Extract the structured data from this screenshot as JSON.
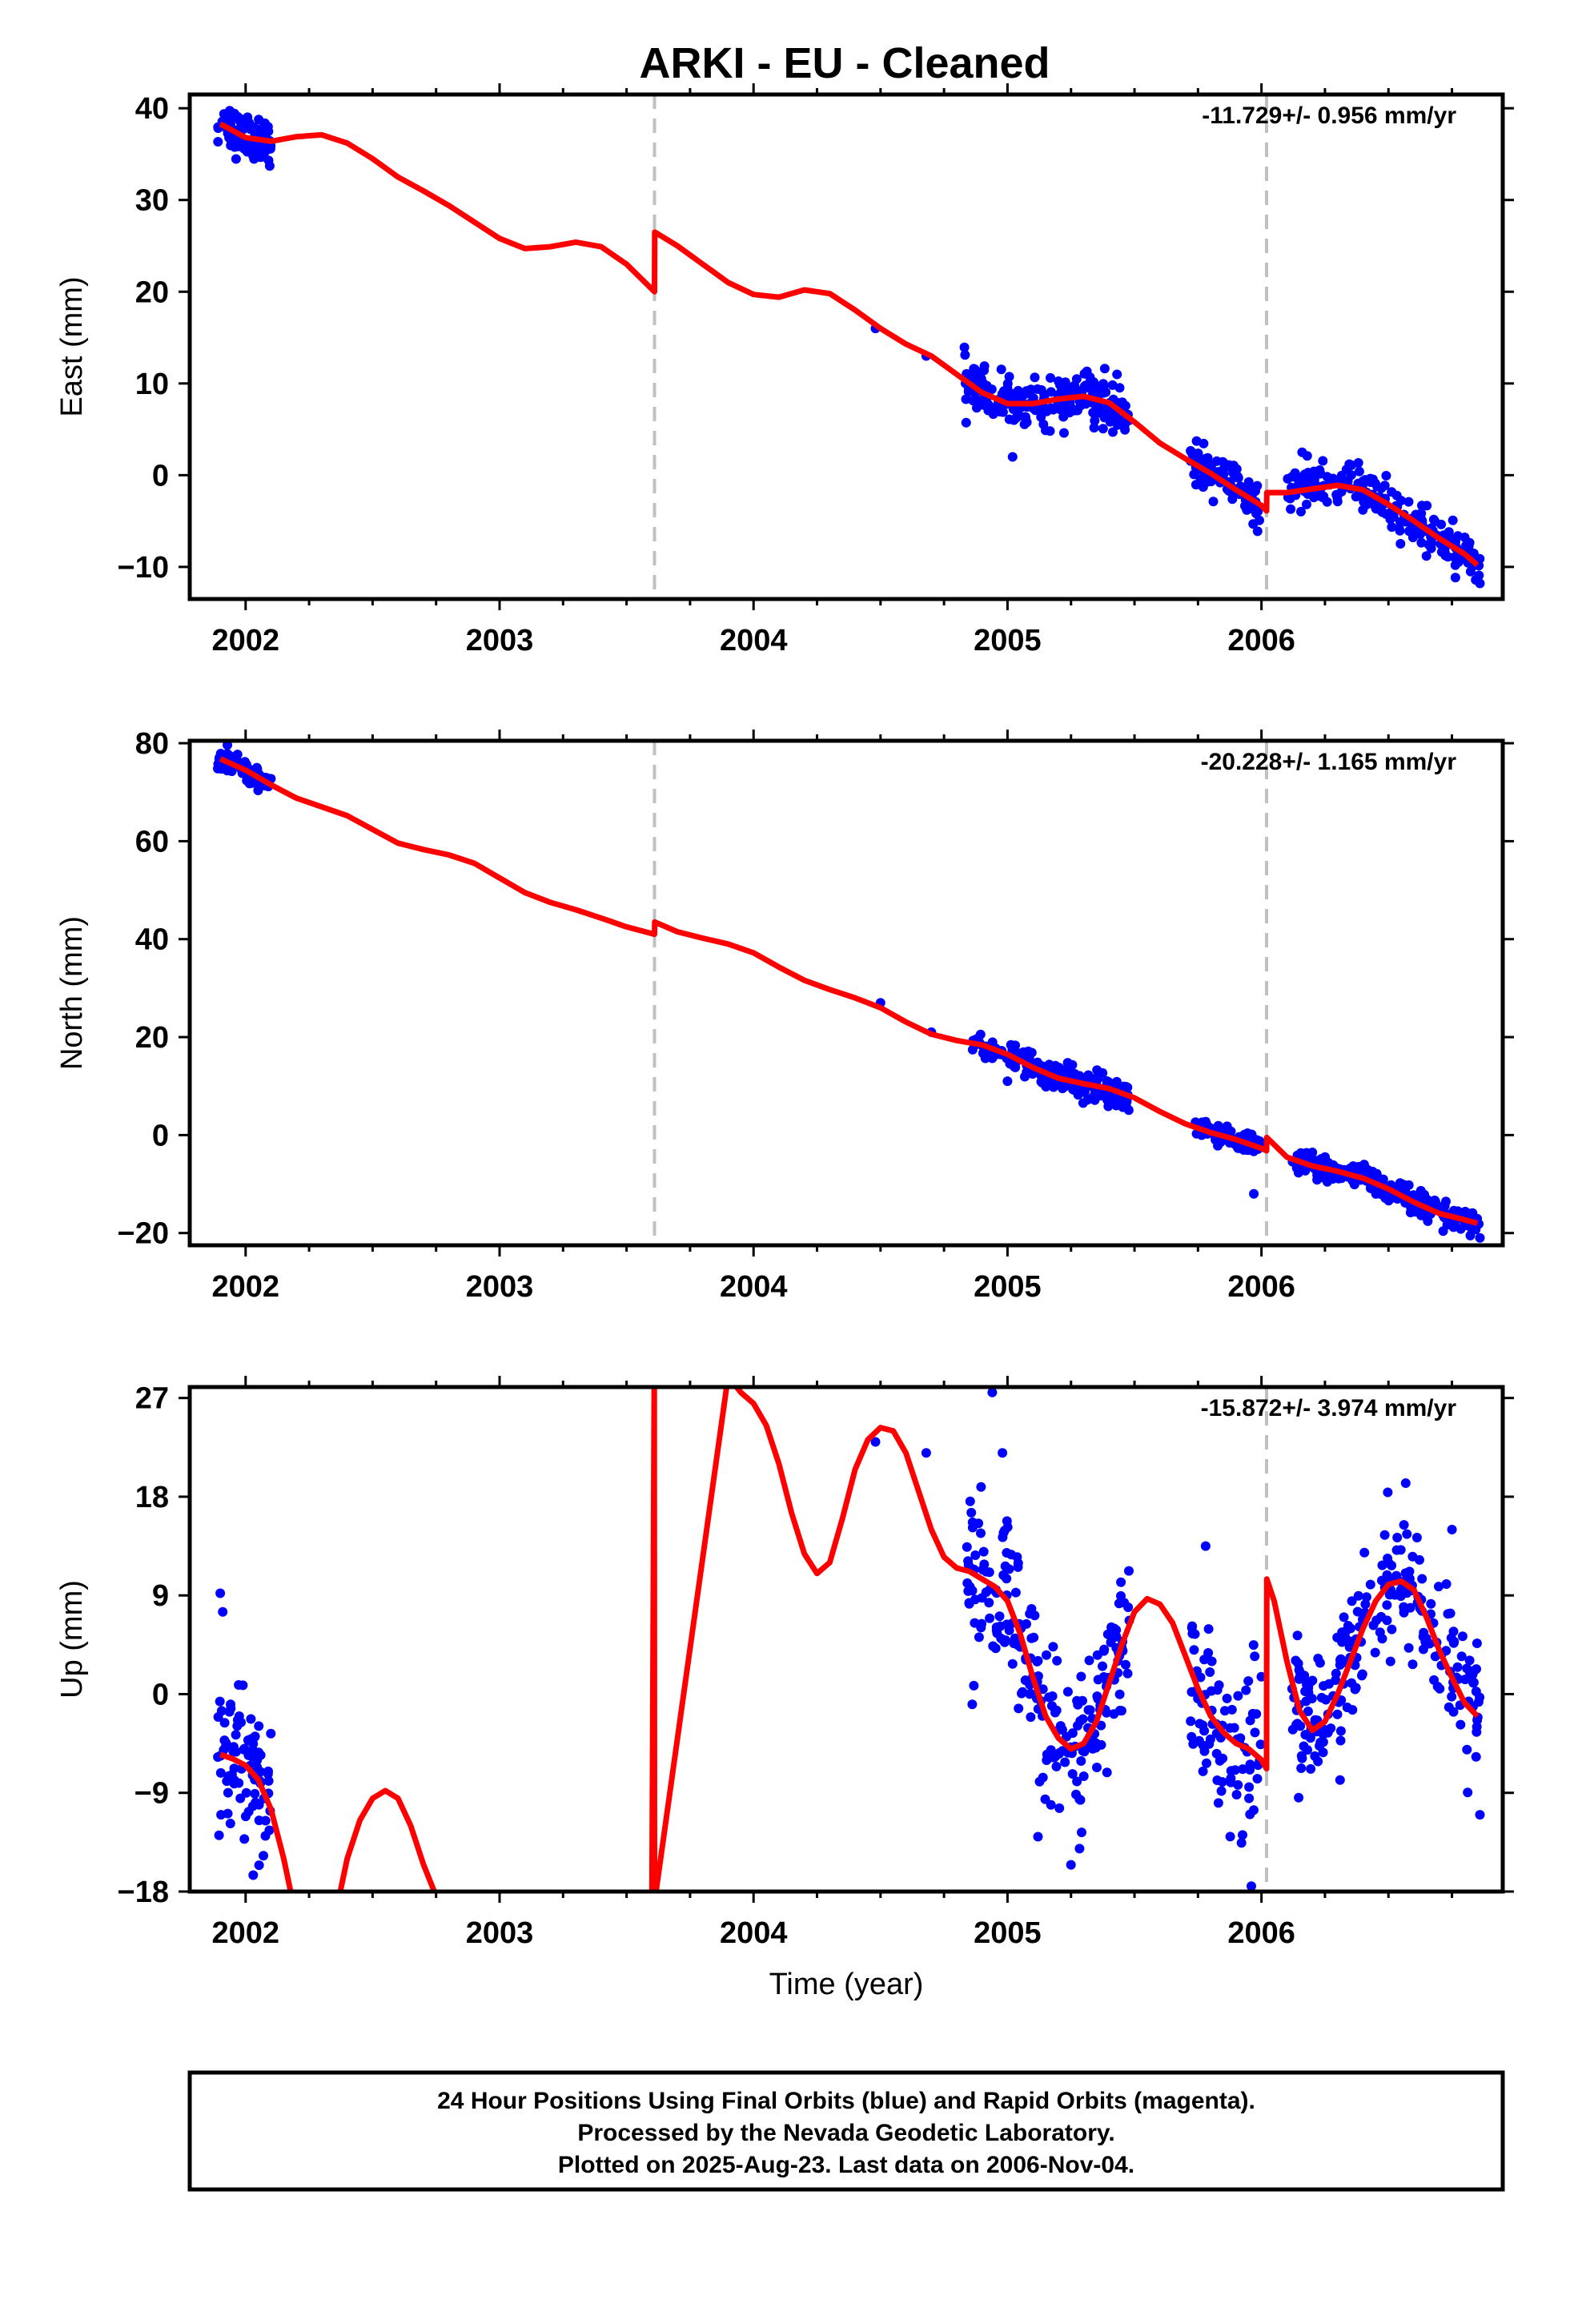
{
  "title": "ARKI  - EU - Cleaned",
  "footer": {
    "lines": [
      "24 Hour Positions Using Final Orbits (blue) and Rapid Orbits (magenta).",
      "Processed by the Nevada Geodetic Laboratory.",
      "Plotted on 2025-Aug-23. Last data on 2006-Nov-04."
    ]
  },
  "colors": {
    "points": "#0000ff",
    "model": "#ff0000",
    "events": "#c0c0c0",
    "frame": "#000000"
  },
  "chart_data": [
    {
      "type": "scatter",
      "ylabel": "East (mm)",
      "xlabel": "",
      "rate": "-11.729+/- 0.956 mm/yr",
      "xlim": [
        2001.78,
        2006.95
      ],
      "ylim": [
        -13.5,
        41.5
      ],
      "xticks": [
        2002,
        2003,
        2004,
        2005,
        2006
      ],
      "yticks": [
        -10,
        0,
        10,
        20,
        30,
        40
      ],
      "events": [
        2003.61,
        2006.02
      ],
      "model": [
        [
          2001.9,
          38.3
        ],
        [
          2002.0,
          36.8
        ],
        [
          2002.1,
          36.4
        ],
        [
          2002.2,
          36.9
        ],
        [
          2002.3,
          37.1
        ],
        [
          2002.4,
          36.2
        ],
        [
          2002.5,
          34.5
        ],
        [
          2002.6,
          32.5
        ],
        [
          2002.7,
          31.0
        ],
        [
          2002.8,
          29.4
        ],
        [
          2002.9,
          27.6
        ],
        [
          2003.0,
          25.8
        ],
        [
          2003.1,
          24.7
        ],
        [
          2003.2,
          24.9
        ],
        [
          2003.3,
          25.4
        ],
        [
          2003.4,
          24.9
        ],
        [
          2003.5,
          23.0
        ],
        [
          2003.61,
          20.0
        ],
        [
          2003.611,
          26.5
        ],
        [
          2003.7,
          25.0
        ],
        [
          2003.8,
          23.0
        ],
        [
          2003.9,
          21.0
        ],
        [
          2004.0,
          19.7
        ],
        [
          2004.1,
          19.4
        ],
        [
          2004.2,
          20.2
        ],
        [
          2004.3,
          19.8
        ],
        [
          2004.4,
          18.0
        ],
        [
          2004.5,
          16.0
        ],
        [
          2004.6,
          14.3
        ],
        [
          2004.7,
          13.0
        ],
        [
          2004.8,
          11.0
        ],
        [
          2004.9,
          9.0
        ],
        [
          2005.0,
          7.8
        ],
        [
          2005.1,
          7.8
        ],
        [
          2005.2,
          8.3
        ],
        [
          2005.3,
          8.6
        ],
        [
          2005.4,
          7.9
        ],
        [
          2005.5,
          5.8
        ],
        [
          2005.6,
          3.5
        ],
        [
          2005.7,
          1.8
        ],
        [
          2005.8,
          0.2
        ],
        [
          2005.9,
          -1.6
        ],
        [
          2006.0,
          -3.3
        ],
        [
          2006.02,
          -3.9
        ],
        [
          2006.021,
          -1.9
        ],
        [
          2006.1,
          -1.9
        ],
        [
          2006.2,
          -1.5
        ],
        [
          2006.3,
          -1.1
        ],
        [
          2006.4,
          -1.6
        ],
        [
          2006.5,
          -3.2
        ],
        [
          2006.6,
          -5.0
        ],
        [
          2006.7,
          -6.9
        ],
        [
          2006.8,
          -8.6
        ],
        [
          2006.85,
          -9.8
        ]
      ],
      "segments": [
        {
          "x0": 2001.89,
          "x1": 2002.1,
          "n": 90,
          "sd": 1.2
        },
        {
          "x0": 2004.83,
          "x1": 2005.48,
          "n": 240,
          "sd": 1.3
        },
        {
          "x0": 2005.72,
          "x1": 2006.0,
          "n": 90,
          "sd": 1.2
        },
        {
          "x0": 2006.1,
          "x1": 2006.86,
          "n": 230,
          "sd": 1.2
        }
      ],
      "extra_points": [
        [
          2004.48,
          16.0
        ],
        [
          2004.68,
          13.0
        ],
        [
          2004.88,
          11.0
        ],
        [
          2005.02,
          2.0
        ],
        [
          2005.78,
          1.8
        ],
        [
          2006.16,
          2.5
        ],
        [
          2006.86,
          -11.8
        ]
      ]
    },
    {
      "type": "scatter",
      "ylabel": "North (mm)",
      "xlabel": "",
      "rate": "-20.228+/- 1.165 mm/yr",
      "xlim": [
        2001.78,
        2006.95
      ],
      "ylim": [
        -22.5,
        80.5
      ],
      "xticks": [
        2002,
        2003,
        2004,
        2005,
        2006
      ],
      "yticks": [
        -20,
        0,
        20,
        40,
        60,
        80
      ],
      "events": [
        2003.61,
        2006.02
      ],
      "model": [
        [
          2001.9,
          76.8
        ],
        [
          2002.0,
          74.5
        ],
        [
          2002.1,
          71.5
        ],
        [
          2002.2,
          68.8
        ],
        [
          2002.3,
          67.0
        ],
        [
          2002.4,
          65.2
        ],
        [
          2002.5,
          62.4
        ],
        [
          2002.6,
          59.6
        ],
        [
          2002.7,
          58.3
        ],
        [
          2002.8,
          57.2
        ],
        [
          2002.9,
          55.5
        ],
        [
          2003.0,
          52.5
        ],
        [
          2003.1,
          49.5
        ],
        [
          2003.2,
          47.5
        ],
        [
          2003.3,
          46.0
        ],
        [
          2003.4,
          44.3
        ],
        [
          2003.5,
          42.5
        ],
        [
          2003.61,
          41.0
        ],
        [
          2003.611,
          43.5
        ],
        [
          2003.7,
          41.5
        ],
        [
          2003.8,
          40.2
        ],
        [
          2003.9,
          39.0
        ],
        [
          2004.0,
          37.2
        ],
        [
          2004.1,
          34.3
        ],
        [
          2004.2,
          31.6
        ],
        [
          2004.3,
          29.7
        ],
        [
          2004.4,
          28.0
        ],
        [
          2004.5,
          26.0
        ],
        [
          2004.6,
          23.1
        ],
        [
          2004.7,
          20.6
        ],
        [
          2004.8,
          19.3
        ],
        [
          2004.9,
          18.4
        ],
        [
          2005.0,
          16.5
        ],
        [
          2005.1,
          13.8
        ],
        [
          2005.2,
          11.6
        ],
        [
          2005.3,
          10.5
        ],
        [
          2005.4,
          9.5
        ],
        [
          2005.5,
          7.6
        ],
        [
          2005.6,
          4.8
        ],
        [
          2005.7,
          2.3
        ],
        [
          2005.8,
          0.5
        ],
        [
          2005.9,
          -0.9
        ],
        [
          2006.0,
          -2.7
        ],
        [
          2006.02,
          -3.2
        ],
        [
          2006.021,
          -0.5
        ],
        [
          2006.1,
          -4.5
        ],
        [
          2006.2,
          -6.3
        ],
        [
          2006.3,
          -7.4
        ],
        [
          2006.4,
          -8.8
        ],
        [
          2006.5,
          -11.0
        ],
        [
          2006.6,
          -13.7
        ],
        [
          2006.7,
          -16.0
        ],
        [
          2006.8,
          -17.3
        ],
        [
          2006.85,
          -18.0
        ]
      ],
      "segments": [
        {
          "x0": 2001.89,
          "x1": 2002.1,
          "n": 90,
          "sd": 1.1
        },
        {
          "x0": 2004.86,
          "x1": 2005.48,
          "n": 220,
          "sd": 1.4
        },
        {
          "x0": 2005.74,
          "x1": 2006.0,
          "n": 80,
          "sd": 1.2
        },
        {
          "x0": 2006.12,
          "x1": 2006.86,
          "n": 220,
          "sd": 1.3
        }
      ],
      "extra_points": [
        [
          2004.5,
          27.0
        ],
        [
          2004.7,
          21.0
        ],
        [
          2005.0,
          11.0
        ],
        [
          2005.97,
          -12.0
        ],
        [
          2006.86,
          -21.0
        ]
      ]
    },
    {
      "type": "scatter",
      "ylabel": "Up (mm)",
      "xlabel": "Time (year)",
      "rate": "-15.872+/- 3.974 mm/yr",
      "xlim": [
        2001.78,
        2006.95
      ],
      "ylim": [
        -18,
        28
      ],
      "xticks": [
        2002,
        2003,
        2004,
        2005,
        2006
      ],
      "yticks": [
        -18,
        -9,
        0,
        9,
        18,
        27
      ],
      "events": [
        2003.61,
        2006.02
      ],
      "model": [
        [
          2001.9,
          -5.5
        ],
        [
          2001.95,
          -5.9
        ],
        [
          2002.0,
          -6.5
        ],
        [
          2002.05,
          -7.8
        ],
        [
          2002.1,
          -10.5
        ],
        [
          2002.15,
          -15.0
        ],
        [
          2002.2,
          -20.5
        ],
        [
          2002.35,
          -20.5
        ],
        [
          2002.4,
          -15.0
        ],
        [
          2002.45,
          -11.5
        ],
        [
          2002.5,
          -9.5
        ],
        [
          2002.55,
          -8.8
        ],
        [
          2002.6,
          -9.5
        ],
        [
          2002.65,
          -12.0
        ],
        [
          2002.7,
          -15.5
        ],
        [
          2002.76,
          -19.0
        ],
        [
          2003.6,
          -19.0
        ],
        [
          2003.609,
          29.0
        ],
        [
          2003.61,
          -19.0
        ],
        [
          2003.9,
          29.0
        ],
        [
          2003.95,
          27.5
        ],
        [
          2004.0,
          26.5
        ],
        [
          2004.05,
          24.5
        ],
        [
          2004.1,
          21.0
        ],
        [
          2004.15,
          16.5
        ],
        [
          2004.2,
          12.8
        ],
        [
          2004.25,
          11.0
        ],
        [
          2004.3,
          12.0
        ],
        [
          2004.35,
          16.0
        ],
        [
          2004.4,
          20.5
        ],
        [
          2004.45,
          23.2
        ],
        [
          2004.5,
          24.3
        ],
        [
          2004.55,
          24.0
        ],
        [
          2004.6,
          22.0
        ],
        [
          2004.65,
          18.5
        ],
        [
          2004.7,
          15.0
        ],
        [
          2004.75,
          12.5
        ],
        [
          2004.8,
          11.5
        ],
        [
          2004.85,
          11.2
        ],
        [
          2004.9,
          10.5
        ],
        [
          2004.95,
          9.8
        ],
        [
          2005.0,
          8.5
        ],
        [
          2005.05,
          5.5
        ],
        [
          2005.1,
          1.5
        ],
        [
          2005.15,
          -2.0
        ],
        [
          2005.2,
          -4.0
        ],
        [
          2005.25,
          -5.0
        ],
        [
          2005.3,
          -4.5
        ],
        [
          2005.35,
          -2.5
        ],
        [
          2005.4,
          1.0
        ],
        [
          2005.45,
          4.5
        ],
        [
          2005.5,
          7.5
        ],
        [
          2005.55,
          8.7
        ],
        [
          2005.6,
          8.2
        ],
        [
          2005.65,
          6.5
        ],
        [
          2005.7,
          3.5
        ],
        [
          2005.75,
          0.5
        ],
        [
          2005.8,
          -2.0
        ],
        [
          2005.85,
          -3.5
        ],
        [
          2005.9,
          -4.5
        ],
        [
          2005.95,
          -5.0
        ],
        [
          2006.0,
          -6.0
        ],
        [
          2006.02,
          -6.8
        ],
        [
          2006.021,
          10.5
        ],
        [
          2006.05,
          8.5
        ],
        [
          2006.1,
          3.0
        ],
        [
          2006.15,
          -1.5
        ],
        [
          2006.2,
          -3.3
        ],
        [
          2006.25,
          -2.5
        ],
        [
          2006.3,
          0.0
        ],
        [
          2006.35,
          3.0
        ],
        [
          2006.4,
          6.0
        ],
        [
          2006.45,
          8.5
        ],
        [
          2006.5,
          10.0
        ],
        [
          2006.55,
          10.3
        ],
        [
          2006.6,
          9.5
        ],
        [
          2006.65,
          7.0
        ],
        [
          2006.7,
          4.0
        ],
        [
          2006.75,
          1.5
        ],
        [
          2006.8,
          -0.8
        ],
        [
          2006.85,
          -2.0
        ]
      ],
      "segments": [
        {
          "x0": 2001.89,
          "x1": 2002.1,
          "n": 90,
          "sd": 3.2
        },
        {
          "x0": 2004.84,
          "x1": 2005.48,
          "n": 220,
          "sd": 3.6
        },
        {
          "x0": 2005.72,
          "x1": 2006.0,
          "n": 90,
          "sd": 3.8
        },
        {
          "x0": 2006.12,
          "x1": 2006.86,
          "n": 230,
          "sd": 3.4
        }
      ],
      "extra_points": [
        [
          2001.9,
          9.2
        ],
        [
          2001.91,
          7.5
        ],
        [
          2002.03,
          -16.5
        ],
        [
          2004.48,
          23.0
        ],
        [
          2004.68,
          22.0
        ],
        [
          2004.94,
          27.5
        ],
        [
          2004.98,
          22.0
        ],
        [
          2005.12,
          -13.0
        ],
        [
          2005.78,
          13.5
        ],
        [
          2005.96,
          -17.5
        ],
        [
          2006.75,
          15.0
        ],
        [
          2006.86,
          -11.0
        ]
      ]
    }
  ]
}
